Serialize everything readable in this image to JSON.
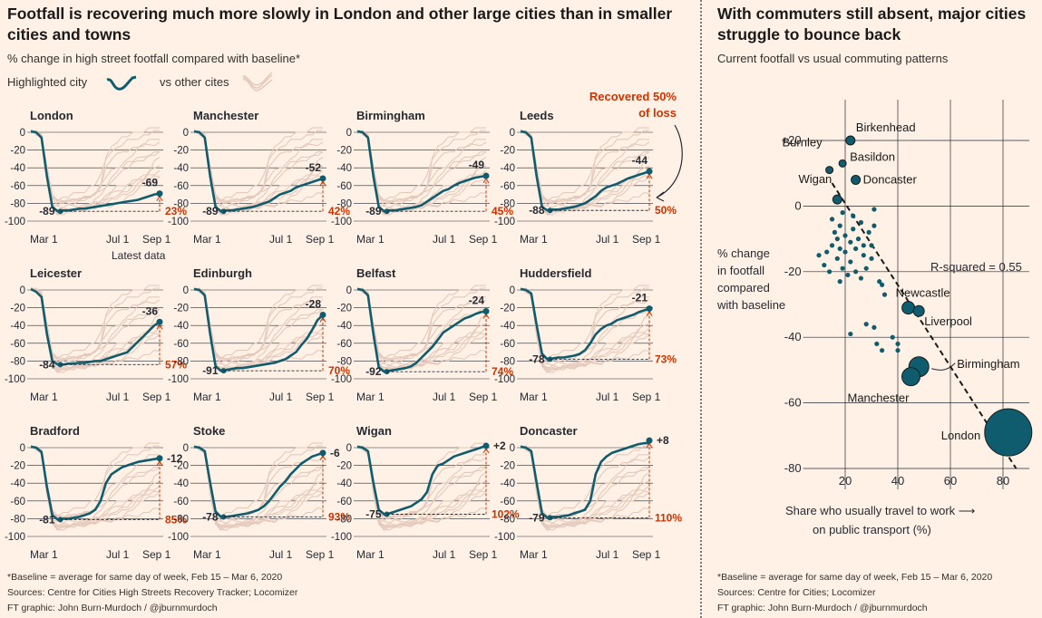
{
  "left": {
    "title": "Footfall is recovering much more slowly in London and other large cities than in smaller cities and towns",
    "title_line1": "Footfall is recovering much more slowly in London and other large cities than in smaller",
    "title_line2": "cities and towns",
    "subtitle": "% change in high street footfall compared with baseline*",
    "legend_highlight": "Highlighted city",
    "legend_other": "vs other cites",
    "annotation_recovered_line1": "Recovered 50%",
    "annotation_recovered_line2": "of loss",
    "latest_data_label": "Latest data",
    "footnote": "*Baseline = average for same day of week, Feb 15 – Mar 6, 2020",
    "sources": "Sources: Centre for Cities High Streets Recovery Tracker; Locomizer",
    "credit": "FT graphic: John Burn-Murdoch / @jburnmurdoch"
  },
  "right": {
    "title_line1": "With commuters still absent, major cities",
    "title_line2": "struggle to bounce back",
    "subtitle": "Current footfall vs usual commuting patterns",
    "ylabel_lines": [
      "% change",
      "in footfall",
      "compared",
      "with baseline"
    ],
    "xlabel_line1": "Share who usually travel to work ⟶",
    "xlabel_line2": "on public transport (%)",
    "r_squared": "R-squared = 0.55",
    "footnote": "*Baseline = average for same day of week, Feb 15 – Mar 6, 2020",
    "sources": "Sources: Centre for Cities; Locomizer",
    "credit": "FT graphic: John Burn-Murdoch / @jburnmurdoch"
  },
  "colors": {
    "highlight": "#0f5c6e",
    "other": "#e5c9bc",
    "accent": "#cc3300",
    "text": "#262a33",
    "background": "#fff1e5"
  },
  "chart_data": [
    {
      "type": "line",
      "description_key": "small-multiples",
      "x_ticks": [
        "Mar 1",
        "Jul 1",
        "Sep 1"
      ],
      "y_ticks": [
        "0",
        "-20",
        "-40",
        "-60",
        "-80",
        "-100"
      ],
      "ylim": [
        -100,
        5
      ],
      "panels": [
        {
          "name": "London",
          "min": -89,
          "latest": -69,
          "recovered": "23%",
          "curve": [
            1,
            0,
            -6,
            -50,
            -84,
            -89,
            -88,
            -88,
            -87,
            -86,
            -86,
            -85,
            -84,
            -83,
            -82,
            -81,
            -80,
            -79,
            -78,
            -77,
            -76,
            -74,
            -72,
            -70,
            -69
          ]
        },
        {
          "name": "Manchester",
          "min": -89,
          "latest": -52,
          "recovered": "42%",
          "curve": [
            1,
            0,
            -6,
            -50,
            -84,
            -89,
            -88,
            -88,
            -87,
            -86,
            -85,
            -84,
            -82,
            -80,
            -78,
            -74,
            -70,
            -68,
            -66,
            -62,
            -60,
            -58,
            -56,
            -54,
            -52
          ]
        },
        {
          "name": "Birmingham",
          "min": -89,
          "latest": -49,
          "recovered": "45%",
          "curve": [
            1,
            0,
            -6,
            -50,
            -84,
            -89,
            -88,
            -88,
            -87,
            -86,
            -85,
            -84,
            -82,
            -78,
            -74,
            -70,
            -66,
            -64,
            -60,
            -57,
            -55,
            -53,
            -51,
            -50,
            -49
          ]
        },
        {
          "name": "Leeds",
          "min": -88,
          "latest": -44,
          "recovered": "50%",
          "curve": [
            1,
            0,
            -6,
            -50,
            -84,
            -88,
            -87,
            -87,
            -86,
            -85,
            -84,
            -82,
            -80,
            -76,
            -72,
            -66,
            -62,
            -60,
            -58,
            -55,
            -52,
            -50,
            -48,
            -46,
            -44
          ]
        },
        {
          "name": "Leicester",
          "min": -84,
          "latest": -36,
          "recovered": "57%",
          "curve": [
            1,
            -2,
            -8,
            -50,
            -80,
            -84,
            -84,
            -83,
            -83,
            -82,
            -82,
            -81,
            -80,
            -80,
            -78,
            -76,
            -74,
            -72,
            -70,
            -64,
            -58,
            -52,
            -46,
            -40,
            -36
          ]
        },
        {
          "name": "Edinburgh",
          "min": -91,
          "latest": -28,
          "recovered": "70%",
          "curve": [
            1,
            0,
            -6,
            -50,
            -86,
            -91,
            -90,
            -89,
            -88,
            -88,
            -87,
            -86,
            -85,
            -84,
            -83,
            -82,
            -80,
            -78,
            -74,
            -70,
            -62,
            -55,
            -45,
            -34,
            -28
          ]
        },
        {
          "name": "Belfast",
          "min": -92,
          "latest": -24,
          "recovered": "74%",
          "curve": [
            1,
            0,
            -6,
            -50,
            -87,
            -92,
            -91,
            -90,
            -89,
            -88,
            -86,
            -82,
            -76,
            -70,
            -64,
            -56,
            -48,
            -44,
            -40,
            -36,
            -32,
            -30,
            -27,
            -25,
            -24
          ]
        },
        {
          "name": "Huddersfield",
          "min": -78,
          "latest": -21,
          "recovered": "73%",
          "curve": [
            1,
            0,
            -4,
            -40,
            -72,
            -78,
            -77,
            -76,
            -76,
            -75,
            -74,
            -72,
            -68,
            -60,
            -50,
            -44,
            -40,
            -38,
            -34,
            -32,
            -30,
            -28,
            -25,
            -23,
            -21
          ]
        },
        {
          "name": "Bradford",
          "min": -81,
          "latest": -12,
          "recovered": "85%",
          "curve": [
            1,
            0,
            -5,
            -45,
            -76,
            -81,
            -80,
            -80,
            -79,
            -78,
            -76,
            -74,
            -70,
            -60,
            -40,
            -30,
            -26,
            -22,
            -20,
            -18,
            -16,
            -15,
            -14,
            -13,
            -12
          ]
        },
        {
          "name": "Stoke",
          "min": -78,
          "latest": -6,
          "recovered": "93%",
          "curve": [
            1,
            0,
            -4,
            -40,
            -72,
            -78,
            -78,
            -77,
            -76,
            -75,
            -74,
            -72,
            -70,
            -66,
            -60,
            -52,
            -44,
            -38,
            -30,
            -24,
            -18,
            -14,
            -10,
            -8,
            -6
          ]
        },
        {
          "name": "Wigan",
          "min": -75,
          "latest": 2,
          "recovered": "102%",
          "curve": [
            1,
            0,
            -4,
            -40,
            -70,
            -75,
            -74,
            -72,
            -70,
            -68,
            -66,
            -62,
            -58,
            -50,
            -30,
            -20,
            -18,
            -14,
            -10,
            -8,
            -6,
            -4,
            -2,
            0,
            2
          ]
        },
        {
          "name": "Doncaster",
          "min": -79,
          "latest": 8,
          "recovered": "110%",
          "curve": [
            1,
            0,
            -4,
            -40,
            -74,
            -79,
            -78,
            -78,
            -77,
            -76,
            -74,
            -72,
            -70,
            -60,
            -30,
            -16,
            -10,
            -6,
            -4,
            -2,
            0,
            2,
            4,
            6,
            8
          ]
        }
      ]
    },
    {
      "type": "scatter",
      "xlabel": "Share who usually travel to work on public transport (%)",
      "ylabel": "% change in footfall compared with baseline",
      "xlim": [
        0,
        90
      ],
      "ylim": [
        -80,
        28
      ],
      "x_ticks": [
        20,
        40,
        60,
        80
      ],
      "y_ticks": [
        "+20",
        "0",
        "-20",
        "-40",
        "-60",
        "-80"
      ],
      "trend_line": {
        "x": [
          15,
          85
        ],
        "y": [
          7,
          -80
        ]
      },
      "labeled_points": [
        {
          "name": "Birkenhead",
          "x": 22,
          "y": 20,
          "size": 5
        },
        {
          "name": "Burnley",
          "x": 14,
          "y": 11,
          "size": 4
        },
        {
          "name": "Basildon",
          "x": 19,
          "y": 13,
          "size": 4
        },
        {
          "name": "Doncaster",
          "x": 24,
          "y": 8,
          "size": 5
        },
        {
          "name": "Wigan",
          "x": 17,
          "y": 2,
          "size": 5
        },
        {
          "name": "Newcastle",
          "x": 44,
          "y": -31,
          "size": 7
        },
        {
          "name": "Liverpool",
          "x": 48,
          "y": -32,
          "size": 6
        },
        {
          "name": "Birmingham",
          "x": 48,
          "y": -49,
          "size": 11
        },
        {
          "name": "Manchester",
          "x": 45,
          "y": -52,
          "size": 10
        },
        {
          "name": "London",
          "x": 82,
          "y": -69,
          "size": 26
        }
      ],
      "other_points": [
        [
          10,
          -15
        ],
        [
          12,
          -18
        ],
        [
          13,
          -14
        ],
        [
          14,
          -20
        ],
        [
          15,
          -12
        ],
        [
          15,
          -4
        ],
        [
          16,
          -8
        ],
        [
          17,
          -10
        ],
        [
          17,
          -16
        ],
        [
          18,
          -6
        ],
        [
          18,
          -13
        ],
        [
          19,
          -19
        ],
        [
          19,
          -2
        ],
        [
          20,
          -9
        ],
        [
          20,
          -14
        ],
        [
          21,
          -21
        ],
        [
          22,
          -11
        ],
        [
          22,
          -17
        ],
        [
          23,
          -7
        ],
        [
          23,
          -3
        ],
        [
          24,
          -13
        ],
        [
          24,
          -20
        ],
        [
          25,
          -10
        ],
        [
          26,
          -5
        ],
        [
          27,
          -15
        ],
        [
          27,
          -12
        ],
        [
          28,
          -19
        ],
        [
          29,
          -8
        ],
        [
          30,
          -12
        ],
        [
          30,
          -16
        ],
        [
          31,
          -1
        ],
        [
          31,
          -6
        ],
        [
          33,
          -23
        ],
        [
          34,
          -24
        ],
        [
          35,
          -27
        ],
        [
          22,
          -39
        ],
        [
          28,
          -36
        ],
        [
          31,
          -37
        ],
        [
          32,
          -42
        ],
        [
          38,
          -40
        ],
        [
          40,
          -42
        ],
        [
          34,
          -44
        ],
        [
          40,
          -44
        ],
        [
          18,
          -23
        ],
        [
          26,
          -22
        ]
      ]
    }
  ]
}
